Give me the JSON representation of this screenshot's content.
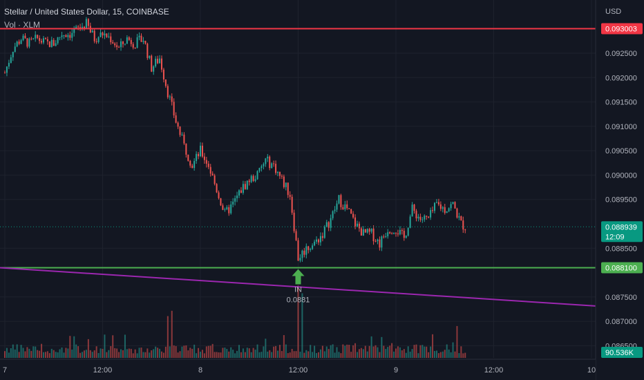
{
  "header": {
    "title": "Stellar / United States Dollar, 15, COINBASE",
    "volume_label": "Vol · XLM"
  },
  "axis": {
    "currency": "USD",
    "price_ticks": [
      "0.092500",
      "0.092000",
      "0.091500",
      "0.091000",
      "0.090500",
      "0.090000",
      "0.089500",
      "0.088500",
      "0.087500",
      "0.087000",
      "0.086500"
    ],
    "price_tick_values": [
      0.0925,
      0.092,
      0.0915,
      0.091,
      0.0905,
      0.09,
      0.0895,
      0.0885,
      0.0875,
      0.087,
      0.0865
    ],
    "time_ticks": [
      "7",
      "12:00",
      "8",
      "12:00",
      "9",
      "12:00",
      "10"
    ],
    "time_tick_values": [
      0,
      12,
      24,
      36,
      48,
      60,
      72
    ]
  },
  "badges": {
    "resistance": "0.093003",
    "current_price": "0.088939",
    "countdown": "12:09",
    "support": "0.088100",
    "volume": "90.536K"
  },
  "annotation": {
    "label": "IN",
    "price": "0.0881"
  },
  "colors": {
    "background": "#131722",
    "up": "#26a69a",
    "down": "#ef5350",
    "resistance": "#f23645",
    "support": "#4caf50",
    "trendline": "#9c27b0",
    "current": "#089981"
  },
  "chart_data": {
    "type": "candlestick",
    "symbol": "XLMUSD",
    "x_unit": "hours since day 7 00:00",
    "xlim": [
      0,
      72
    ],
    "ylim": [
      0.08625,
      0.09345
    ],
    "resistance": 0.093003,
    "support": 0.0881,
    "current": 0.088939,
    "trendline": [
      [
        0,
        0.0881
      ],
      [
        72,
        0.08732
      ]
    ],
    "entry": {
      "x": 36,
      "y": 0.0881,
      "label": "IN"
    },
    "price_path": [
      [
        0,
        0.0921
      ],
      [
        1,
        0.0926
      ],
      [
        2,
        0.0928
      ],
      [
        3,
        0.0927
      ],
      [
        4,
        0.0928
      ],
      [
        5,
        0.0927
      ],
      [
        6,
        0.0927
      ],
      [
        7,
        0.0929
      ],
      [
        8,
        0.0929
      ],
      [
        9,
        0.093
      ],
      [
        10,
        0.0931
      ],
      [
        11,
        0.0928
      ],
      [
        12,
        0.0929
      ],
      [
        13,
        0.0928
      ],
      [
        14,
        0.0926
      ],
      [
        15,
        0.0928
      ],
      [
        16,
        0.0927
      ],
      [
        17,
        0.0928
      ],
      [
        18,
        0.0922
      ],
      [
        19,
        0.0924
      ],
      [
        20,
        0.0917
      ],
      [
        21,
        0.0911
      ],
      [
        22,
        0.0906
      ],
      [
        23,
        0.0902
      ],
      [
        24,
        0.0905
      ],
      [
        25,
        0.0902
      ],
      [
        26,
        0.0897
      ],
      [
        27,
        0.0892
      ],
      [
        28,
        0.0894
      ],
      [
        29,
        0.0897
      ],
      [
        30,
        0.0899
      ],
      [
        31,
        0.09
      ],
      [
        32,
        0.0903
      ],
      [
        33,
        0.0902
      ],
      [
        34,
        0.0899
      ],
      [
        35,
        0.0896
      ],
      [
        36,
        0.0883
      ],
      [
        37,
        0.0885
      ],
      [
        38,
        0.0886
      ],
      [
        39,
        0.0888
      ],
      [
        40,
        0.0891
      ],
      [
        41,
        0.0895
      ],
      [
        42,
        0.0893
      ],
      [
        43,
        0.089
      ],
      [
        44,
        0.0888
      ],
      [
        45,
        0.0888
      ],
      [
        46,
        0.0886
      ],
      [
        47,
        0.0889
      ],
      [
        48,
        0.0889
      ],
      [
        49,
        0.0887
      ],
      [
        50,
        0.0893
      ],
      [
        51,
        0.0891
      ],
      [
        52,
        0.0891
      ],
      [
        53,
        0.0894
      ],
      [
        54,
        0.0893
      ],
      [
        55,
        0.0894
      ],
      [
        56,
        0.089
      ],
      [
        56.5,
        0.08894
      ]
    ],
    "volume_spikes": [
      [
        20,
        0.55
      ],
      [
        20.5,
        0.62
      ],
      [
        36,
        0.95
      ],
      [
        36.5,
        0.85
      ]
    ]
  }
}
